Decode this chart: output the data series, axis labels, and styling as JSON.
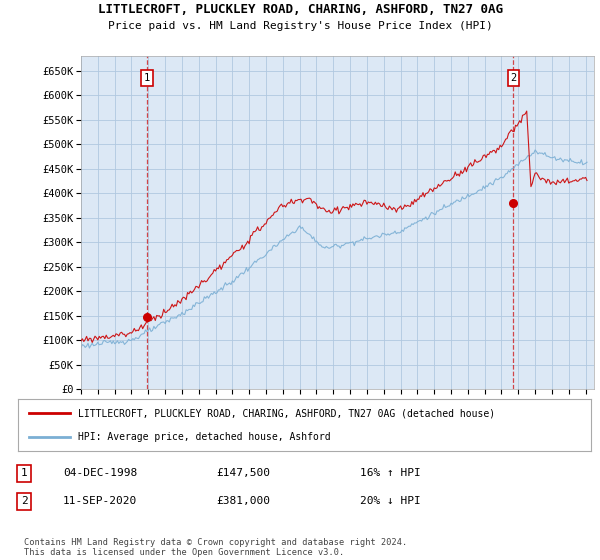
{
  "title_line1": "LITTLECROFT, PLUCKLEY ROAD, CHARING, ASHFORD, TN27 0AG",
  "title_line2": "Price paid vs. HM Land Registry's House Price Index (HPI)",
  "ylim": [
    0,
    680000
  ],
  "yticks": [
    0,
    50000,
    100000,
    150000,
    200000,
    250000,
    300000,
    350000,
    400000,
    450000,
    500000,
    550000,
    600000,
    650000
  ],
  "xlim_start": 1995.0,
  "xlim_end": 2025.5,
  "xticks": [
    1995,
    1996,
    1997,
    1998,
    1999,
    2000,
    2001,
    2002,
    2003,
    2004,
    2005,
    2006,
    2007,
    2008,
    2009,
    2010,
    2011,
    2012,
    2013,
    2014,
    2015,
    2016,
    2017,
    2018,
    2019,
    2020,
    2021,
    2022,
    2023,
    2024,
    2025
  ],
  "property_color": "#cc0000",
  "hpi_color": "#7bafd4",
  "chart_bg": "#dce8f5",
  "marker1_x": 1998.92,
  "marker1_y": 147500,
  "marker2_x": 2020.7,
  "marker2_y": 381000,
  "legend_line1": "LITTLECROFT, PLUCKLEY ROAD, CHARING, ASHFORD, TN27 0AG (detached house)",
  "legend_line2": "HPI: Average price, detached house, Ashford",
  "table_data": [
    [
      "1",
      "04-DEC-1998",
      "£147,500",
      "16% ↑ HPI"
    ],
    [
      "2",
      "11-SEP-2020",
      "£381,000",
      "20% ↓ HPI"
    ]
  ],
  "footnote": "Contains HM Land Registry data © Crown copyright and database right 2024.\nThis data is licensed under the Open Government Licence v3.0.",
  "background_color": "#ffffff",
  "grid_color": "#b0c8e0"
}
